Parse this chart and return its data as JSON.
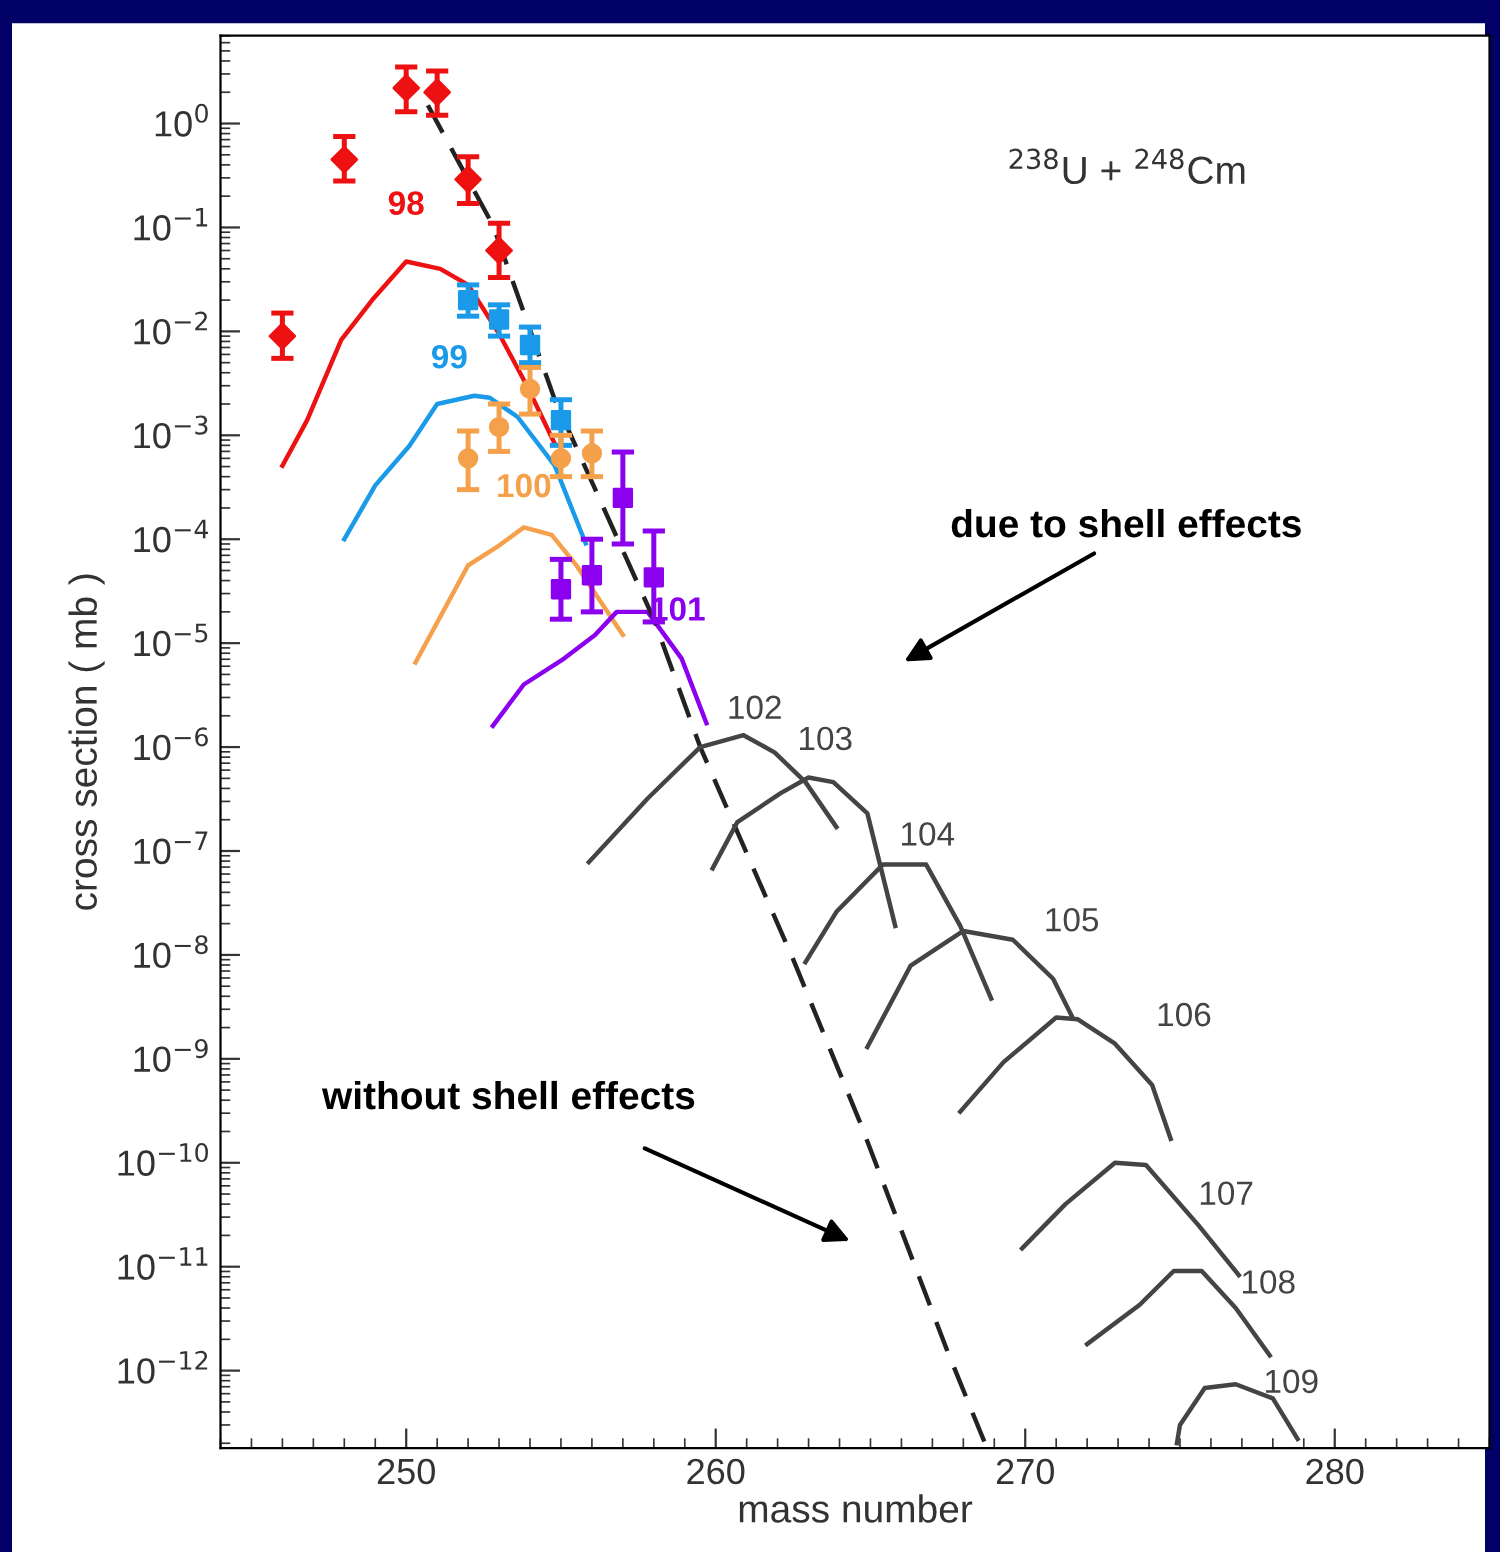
{
  "chart_data": {
    "type": "line",
    "xlabel": "mass number",
    "ylabel": "cross section ( mb )",
    "xlim": [
      244,
      285
    ],
    "xticks": [
      250,
      260,
      270,
      280
    ],
    "ylim": [
      1.8e-13,
      7
    ],
    "log": "y",
    "yticks": [
      {
        "value": 1,
        "label": "10$^{0}$"
      },
      {
        "value": 0.1,
        "label": "10$^{−1}$"
      },
      {
        "value": 0.01,
        "label": "10$^{−2}$"
      },
      {
        "value": 0.001,
        "label": "10$^{−3}$"
      },
      {
        "value": 0.0001,
        "label": "10$^{−4}$"
      },
      {
        "value": 1e-05,
        "label": "10$^{−5}$"
      },
      {
        "value": 1e-06,
        "label": "10$^{−6}$"
      },
      {
        "value": 1e-07,
        "label": "10$^{−7}$"
      },
      {
        "value": 1e-08,
        "label": "10$^{−8}$"
      },
      {
        "value": 1e-09,
        "label": "10$^{−9}$"
      },
      {
        "value": 1e-10,
        "label": "10$^{−10}$"
      },
      {
        "value": 1e-11,
        "label": "10$^{−11}$"
      },
      {
        "value": 1e-12,
        "label": "10$^{−12}$"
      }
    ],
    "grid": false,
    "legend": false,
    "annotations": [
      "$^{238}$U + $^{248}$Cm",
      "due to shell effects",
      "without shell effects"
    ],
    "series": [
      {
        "type": "line",
        "name": "98",
        "color": "#ee1111",
        "x": [
          246.0,
          246.8,
          247.9,
          248.9,
          250.0,
          251.1,
          252.0,
          253.0,
          253.9,
          254.8
        ],
        "values": [
          0.00051,
          0.0014,
          0.0083,
          0.02,
          0.047,
          0.04,
          0.028,
          0.0095,
          0.003,
          0.00083
        ]
      },
      {
        "type": "line",
        "name": "99",
        "color": "#1a9ae8",
        "x": [
          248.0,
          249.0,
          250.1,
          251.0,
          252.2,
          252.7,
          253.6,
          254.8,
          255.8
        ],
        "values": [
          0.0001,
          0.00033,
          0.00079,
          0.002,
          0.0024,
          0.0023,
          0.0015,
          0.00051,
          9.1e-05
        ]
      },
      {
        "type": "line",
        "name": "100",
        "color": "#f5a04a",
        "x": [
          250.3,
          252.0,
          253.0,
          253.8,
          254.7,
          255.5,
          257.0
        ],
        "values": [
          6.5e-06,
          5.6e-05,
          8.7e-05,
          0.00013,
          0.00011,
          5.6e-05,
          1.2e-05
        ]
      },
      {
        "type": "line",
        "name": "101",
        "color": "#8b00ee",
        "x": [
          252.8,
          253.8,
          255.1,
          256.1,
          256.8,
          257.8,
          258.9,
          259.7
        ],
        "values": [
          1.6e-06,
          4e-06,
          7.1e-06,
          1.2e-05,
          2e-05,
          2e-05,
          7.1e-06,
          1.7e-06
        ]
      },
      {
        "type": "line",
        "color": "#222222",
        "line_style": "dashed",
        "x": [
          250.7,
          252.8,
          254.8,
          258.0,
          259.5,
          262.5,
          264.7,
          267.5,
          268.7
        ],
        "values": [
          1.5,
          0.105,
          0.0022,
          1.7e-05,
          1e-06,
          9.1e-09,
          2.3e-10,
          1.5e-12,
          2e-13
        ]
      },
      {
        "type": "line",
        "name": "102",
        "color": "#444444",
        "x": [
          255.9,
          257.8,
          259.5,
          260.9,
          261.9,
          262.9,
          263.9
        ],
        "values": [
          7.8e-08,
          3.2e-07,
          1e-06,
          1.3e-06,
          8.9e-07,
          4.6e-07,
          1.7e-07
        ]
      },
      {
        "type": "line",
        "name": "103",
        "color": "#444444",
        "x": [
          259.9,
          260.7,
          262.1,
          263.0,
          263.8,
          264.9,
          265.8
        ],
        "values": [
          6.8e-08,
          1.9e-07,
          3.6e-07,
          5.1e-07,
          4.6e-07,
          2.3e-07,
          1.9e-08
        ]
      },
      {
        "type": "line",
        "name": "104",
        "color": "#444444",
        "x": [
          262.9,
          263.9,
          265.4,
          266.8,
          267.9,
          268.9
        ],
        "values": [
          8.5e-09,
          2.6e-08,
          7.4e-08,
          7.4e-08,
          1.9e-08,
          3.8e-09
        ]
      },
      {
        "type": "line",
        "name": "105",
        "color": "#444444",
        "x": [
          264.9,
          266.3,
          268.0,
          269.6,
          270.9,
          271.5
        ],
        "values": [
          1.3e-09,
          7.9e-09,
          1.7e-08,
          1.4e-08,
          5.9e-09,
          2.6e-09
        ]
      },
      {
        "type": "line",
        "name": "106",
        "color": "#444444",
        "x": [
          267.9,
          269.3,
          271.0,
          271.7,
          272.9,
          274.1,
          274.7
        ],
        "values": [
          3.1e-10,
          9.3e-10,
          2.5e-09,
          2.4e-09,
          1.4e-09,
          5.6e-10,
          1.7e-10
        ]
      },
      {
        "type": "line",
        "name": "107",
        "color": "#444444",
        "x": [
          269.9,
          271.3,
          272.9,
          273.9,
          275.6,
          276.9
        ],
        "values": [
          1.5e-11,
          4e-11,
          1e-10,
          9.5e-11,
          2.5e-11,
          8.3e-12
        ]
      },
      {
        "type": "line",
        "name": "108",
        "color": "#444444",
        "x": [
          272.0,
          273.7,
          274.8,
          275.7,
          276.8,
          277.9
        ],
        "values": [
          1.8e-12,
          4.3e-12,
          9.1e-12,
          9.1e-12,
          4e-12,
          1.4e-12
        ]
      },
      {
        "type": "line",
        "name": "109",
        "color": "#444444",
        "x": [
          274.9,
          275.0,
          275.8,
          276.8,
          278.0,
          278.8
        ],
        "values": [
          2e-13,
          3e-13,
          6.8e-13,
          7.4e-13,
          5.4e-13,
          2.2e-13
        ]
      },
      {
        "type": "scatter",
        "color": "#ee1111",
        "marker": "diamond",
        "x": [
          246,
          248,
          250,
          251,
          252,
          253
        ],
        "values": [
          0.009,
          0.45,
          2.2,
          2.0,
          0.29,
          0.06
        ],
        "errors": [
          [
            0.0055,
            0.015
          ],
          [
            0.28,
            0.75
          ],
          [
            1.3,
            3.5
          ],
          [
            1.2,
            3.2
          ],
          [
            0.17,
            0.48
          ],
          [
            0.033,
            0.11
          ]
        ]
      },
      {
        "type": "scatter",
        "color": "#1a9ae8",
        "marker": "square",
        "x": [
          252,
          253,
          254,
          255
        ],
        "values": [
          0.02,
          0.013,
          0.0074,
          0.0014
        ],
        "errors": [
          [
            0.014,
            0.028
          ],
          [
            0.009,
            0.018
          ],
          [
            0.005,
            0.011
          ],
          [
            0.0008,
            0.0022
          ]
        ]
      },
      {
        "type": "scatter",
        "color": "#f5a04a",
        "marker": "circle",
        "x": [
          252,
          253,
          254,
          255,
          256
        ],
        "values": [
          0.0006,
          0.0012,
          0.0028,
          0.0006,
          0.00067
        ],
        "errors": [
          [
            0.0003,
            0.0011
          ],
          [
            0.0007,
            0.002
          ],
          [
            0.0016,
            0.0045
          ],
          [
            0.0004,
            0.001
          ],
          [
            0.0004,
            0.0011
          ]
        ]
      },
      {
        "type": "scatter",
        "color": "#8b00ee",
        "marker": "square",
        "x": [
          255,
          256,
          257,
          258
        ],
        "values": [
          3.3e-05,
          4.5e-05,
          0.00025,
          4.3e-05
        ],
        "errors": [
          [
            1.7e-05,
            6.4e-05
          ],
          [
            2e-05,
            0.0001
          ],
          [
            9e-05,
            0.00069
          ],
          [
            1.6e-05,
            0.00012
          ]
        ]
      }
    ]
  }
}
